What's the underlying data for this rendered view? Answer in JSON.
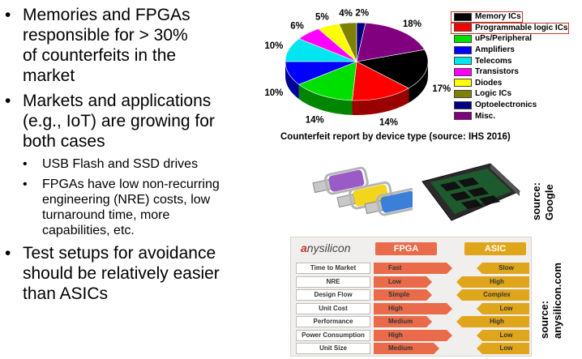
{
  "bullets": [
    {
      "level": 1,
      "lines": [
        "Memories and FPGAs",
        "responsible for > 30%",
        "of counterfeits in the",
        "market"
      ]
    },
    {
      "level": 1,
      "lines": [
        "Markets and applications",
        "(e.g., IoT) are growing for",
        "both cases"
      ]
    },
    {
      "level": 2,
      "lines": [
        "USB Flash and SSD drives"
      ]
    },
    {
      "level": 2,
      "lines": [
        "FPGAs have low non-recurring",
        "engineering (NRE) costs, low",
        "turnaround time, more",
        "capabilities, etc."
      ]
    },
    {
      "level": 1,
      "lines": [
        "Test setups for avoidance",
        "should be relatively easier",
        "than ASICs"
      ]
    }
  ],
  "bullet_glyph": "•",
  "chart_data": {
    "type": "pie",
    "title": "",
    "slices": [
      {
        "label": "Memory ICs",
        "value": 17,
        "pct_label": "17%",
        "color": "#000000"
      },
      {
        "label": "Programmable logic ICs",
        "value": 14,
        "pct_label": "14%",
        "color": "#ff0000"
      },
      {
        "label": "uPs/Peripheral",
        "value": 14,
        "pct_label": "14%",
        "color": "#00e000"
      },
      {
        "label": "Amplifiers",
        "value": 10,
        "pct_label": "10%",
        "color": "#0000ff"
      },
      {
        "label": "Telecoms",
        "value": 10,
        "pct_label": "10%",
        "color": "#00e6ee"
      },
      {
        "label": "Transistors",
        "value": 6,
        "pct_label": "6%",
        "color": "#ff00ff"
      },
      {
        "label": "Diodes",
        "value": 5,
        "pct_label": "5%",
        "color": "#ffff00"
      },
      {
        "label": "Logic ICs",
        "value": 4,
        "pct_label": "4%",
        "color": "#808000"
      },
      {
        "label": "Optoelectronics",
        "value": 2,
        "pct_label": "2%",
        "color": "#000080"
      },
      {
        "label": "Misc.",
        "value": 18,
        "pct_label": "18%",
        "color": "#800080"
      }
    ],
    "highlighted": [
      "Memory ICs",
      "Programmable logic ICs"
    ],
    "highlight_color": "#c0392b",
    "legend_position": "right"
  },
  "caption": "Counterfeit report by device type (source: IHS 2016)",
  "sources": {
    "google": [
      "source:",
      "Google"
    ],
    "anysilicon": [
      "source:",
      "anysilicon.com"
    ]
  },
  "comparison": {
    "logo_a": "a",
    "logo_rest": "nysilicon",
    "fpga_header": "FPGA",
    "asic_header": "ASIC",
    "fpga_color": "#e96b4a",
    "asic_color": "#e0a61b",
    "rows": [
      {
        "label": "Time to Market",
        "fpga": "Fast",
        "asic": "Slow",
        "fpga_level": 0.9,
        "asic_level": 0.45
      },
      {
        "label": "NRE",
        "fpga": "Low",
        "asic": "High",
        "fpga_level": 0.45,
        "asic_level": 0.9
      },
      {
        "label": "Design Flow",
        "fpga": "Simple",
        "asic": "Complex",
        "fpga_level": 0.45,
        "asic_level": 0.9
      },
      {
        "label": "Unit Cost",
        "fpga": "High",
        "asic": "Low",
        "fpga_level": 0.9,
        "asic_level": 0.45
      },
      {
        "label": "Performance",
        "fpga": "Medium",
        "asic": "High",
        "fpga_level": 0.45,
        "asic_level": 0.9
      },
      {
        "label": "Power Consumption",
        "fpga": "High",
        "asic": "Low",
        "fpga_level": 0.9,
        "asic_level": 0.45
      },
      {
        "label": "Unit Size",
        "fpga": "Medium",
        "asic": "Low",
        "fpga_level": 0.6,
        "asic_level": 0.45
      }
    ]
  }
}
